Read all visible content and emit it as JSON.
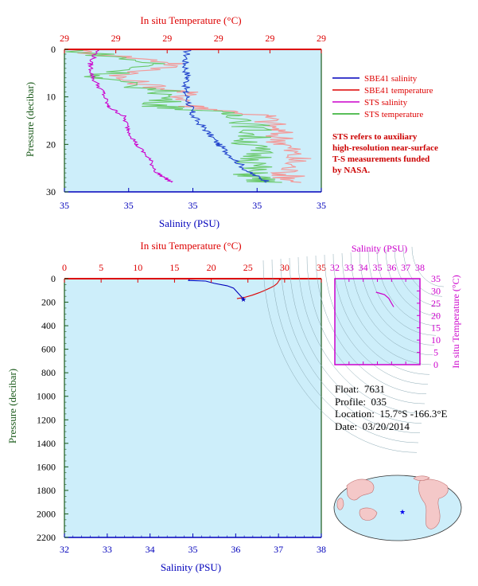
{
  "colors": {
    "panel_bg": "#cdeefa",
    "red": "#dd0000",
    "blue": "#0000bb",
    "magenta": "#cc00cc",
    "green": "#6ac96a",
    "pink": "#f29a9a",
    "navy_salinity": "#2244cc",
    "green_axis": "#1a5a1a"
  },
  "top_chart": {
    "title": "In situ Temperature (°C)",
    "ylabel": "Pressure (decibar)",
    "xlabel": "Salinity (PSU)",
    "top_ticks": [
      "29",
      "29",
      "29",
      "29",
      "29",
      "29"
    ],
    "bottom_ticks": [
      "35",
      "35",
      "35",
      "35",
      "35"
    ],
    "y_ticks": [
      "0",
      "10",
      "20",
      "30"
    ]
  },
  "legend": [
    {
      "label": "SBE41 salinity",
      "color": "#0000bb"
    },
    {
      "label": "SBE41 temperature",
      "color": "#dd0000"
    },
    {
      "label": "STS salinity",
      "color": "#cc00cc"
    },
    {
      "label": "STS temperature",
      "color": "#22aa22"
    }
  ],
  "note_lines": [
    "STS refers to auxiliary",
    "high-resolution near-surface",
    "T-S measurements funded",
    "by NASA."
  ],
  "bottom_chart": {
    "title": "In situ Temperature (°C)",
    "ylabel": "Pressure (decibar)",
    "xlabel": "Salinity (PSU)",
    "top_ticks": [
      "0",
      "5",
      "10",
      "15",
      "20",
      "25",
      "30",
      "35"
    ],
    "bottom_ticks": [
      "32",
      "33",
      "34",
      "35",
      "36",
      "37",
      "38"
    ],
    "y_ticks": [
      "0",
      "200",
      "400",
      "600",
      "800",
      "1000",
      "1200",
      "1400",
      "1600",
      "1800",
      "2000",
      "2200"
    ]
  },
  "ts_chart": {
    "title": "Salinity (PSU)",
    "ylabel": "In situ Temperature (°C)",
    "x_ticks": [
      "32",
      "33",
      "34",
      "35",
      "36",
      "37",
      "38"
    ],
    "y_ticks": [
      "0",
      "5",
      "10",
      "15",
      "20",
      "25",
      "30",
      "35"
    ]
  },
  "float_info": {
    "float_label": "Float:",
    "float_value": "7631",
    "profile_label": "Profile:",
    "profile_value": "035",
    "location_label": "Location:",
    "location_value": "15.7°S  -166.3°E",
    "date_label": "Date:",
    "date_value": "03/20/2014"
  },
  "chart_data": [
    {
      "type": "line",
      "ylim": [
        0,
        30
      ],
      "y_reversed": true,
      "series": [
        {
          "name": "SBE41 salinity",
          "y": [
            0,
            3,
            6,
            9,
            12,
            14,
            17,
            20,
            23,
            26,
            28
          ],
          "x_frac": [
            0.48,
            0.47,
            0.48,
            0.47,
            0.49,
            0.5,
            0.55,
            0.6,
            0.66,
            0.72,
            0.8
          ]
        },
        {
          "name": "SBE41 temperature",
          "y": [
            0,
            3,
            6,
            9,
            12,
            14,
            17,
            20,
            23,
            26,
            28
          ],
          "x_frac": [
            0.0,
            0.45,
            0.2,
            0.46,
            0.5,
            0.78,
            0.82,
            0.86,
            0.9,
            0.86,
            0.9
          ]
        },
        {
          "name": "STS salinity",
          "y": [
            0,
            3,
            6,
            9,
            12,
            14,
            17,
            20,
            23,
            26,
            28
          ],
          "x_frac": [
            0.13,
            0.1,
            0.11,
            0.15,
            0.17,
            0.23,
            0.25,
            0.28,
            0.33,
            0.36,
            0.42
          ]
        },
        {
          "name": "STS temperature",
          "y": [
            0,
            3,
            6,
            9,
            12,
            14,
            17,
            20,
            23,
            26,
            28
          ],
          "x_frac": [
            0.02,
            0.35,
            0.12,
            0.4,
            0.38,
            0.7,
            0.74,
            0.72,
            0.76,
            0.72,
            0.78
          ]
        }
      ]
    },
    {
      "type": "line",
      "xlim_salinity": [
        32,
        38
      ],
      "xlim_temperature": [
        0,
        35
      ],
      "ylim": [
        0,
        2200
      ],
      "y_reversed": true,
      "series": [
        {
          "name": "SBE41 salinity",
          "pressure": [
            5,
            15,
            20,
            40,
            60,
            80,
            100,
            120,
            140,
            160,
            170
          ],
          "values": [
            34.92,
            34.9,
            35.3,
            35.5,
            35.8,
            35.95,
            36.0,
            36.05,
            36.1,
            36.15,
            36.18
          ]
        },
        {
          "name": "SBE41 temperature",
          "pressure": [
            5,
            10,
            20,
            40,
            60,
            80,
            100,
            120,
            140,
            160,
            170
          ],
          "values": [
            29.5,
            29.3,
            29.2,
            29.0,
            28.6,
            28.0,
            27.3,
            26.5,
            25.6,
            24.5,
            23.5
          ]
        }
      ]
    },
    {
      "type": "scatter",
      "xlim": [
        32,
        38
      ],
      "ylim": [
        0,
        35
      ],
      "points": [
        {
          "salinity": 34.9,
          "temperature": 29.5
        },
        {
          "salinity": 35.2,
          "temperature": 29.0
        },
        {
          "salinity": 35.5,
          "temperature": 28.5
        },
        {
          "salinity": 35.8,
          "temperature": 27.0
        },
        {
          "salinity": 36.0,
          "temperature": 25.0
        },
        {
          "salinity": 36.15,
          "temperature": 23.5
        }
      ]
    }
  ]
}
